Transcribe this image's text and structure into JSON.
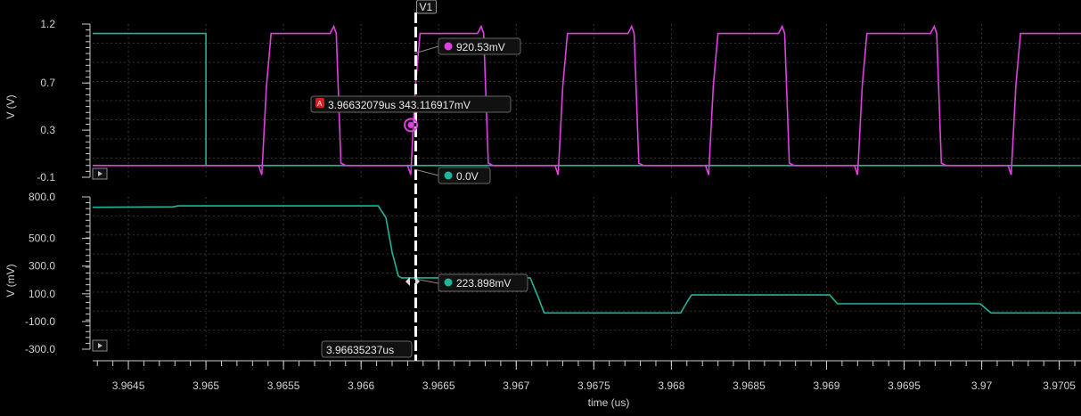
{
  "chart_data": [
    {
      "type": "line",
      "panel": "top",
      "ylabel": "V (V)",
      "yticks": [
        "1.2",
        "0.7",
        "0.3",
        "-0.1"
      ],
      "ylim": [
        -0.1,
        1.2
      ],
      "grid": true,
      "series": [
        {
          "color": "#1fb59a",
          "points": [
            [
              3.96427,
              1.12
            ],
            [
              3.965,
              1.12
            ],
            [
              3.965,
              0.0
            ],
            [
              3.97064,
              0.0
            ]
          ]
        },
        {
          "color": "#e040e0",
          "shape": "pulse",
          "high": 1.12,
          "low": 0.0,
          "overshoot": 1.18,
          "undershoot": -0.08,
          "pulses": [
            {
              "rise": 3.96537,
              "fall": 3.96584
            },
            {
              "rise": 3.96633,
              "fall": 3.96679
            },
            {
              "rise": 3.96728,
              "fall": 3.96776
            },
            {
              "rise": 3.96825,
              "fall": 3.96873
            },
            {
              "rise": 3.96921,
              "fall": 3.96971
            },
            {
              "rise": 3.9702,
              "fall": 3.9708
            }
          ]
        }
      ]
    },
    {
      "type": "line",
      "panel": "bottom",
      "ylabel": "V (mV)",
      "yticks": [
        "800.0",
        "500.0",
        "300.0",
        "100.0",
        "-100.0",
        "-300.0"
      ],
      "ylim": [
        -300,
        800
      ],
      "grid": true,
      "series": [
        {
          "color": "#1fb59a",
          "points": [
            [
              3.96427,
              725
            ],
            [
              3.96479,
              728
            ],
            [
              3.96482,
              735
            ],
            [
              3.96611,
              735
            ],
            [
              3.96616,
              650
            ],
            [
              3.9662,
              400
            ],
            [
              3.96624,
              230
            ],
            [
              3.96626,
              215
            ],
            [
              3.96709,
              215
            ],
            [
              3.96714,
              80
            ],
            [
              3.96718,
              -38
            ],
            [
              3.96806,
              -38
            ],
            [
              3.9681,
              40
            ],
            [
              3.96813,
              92
            ],
            [
              3.96902,
              92
            ],
            [
              3.96907,
              28
            ],
            [
              3.96999,
              28
            ],
            [
              3.97006,
              -38
            ],
            [
              3.97064,
              -38
            ]
          ]
        }
      ]
    }
  ],
  "xaxis": {
    "label": "time (us)",
    "ticks": [
      "3.9645",
      "3.965",
      "3.9655",
      "3.966",
      "3.9665",
      "3.967",
      "3.9675",
      "3.968",
      "3.9685",
      "3.969",
      "3.9695",
      "3.97",
      "3.9705"
    ],
    "xlim": [
      3.96427,
      3.97064
    ]
  },
  "cursor": {
    "name": "V1",
    "time": 3.96635237,
    "time_label": "3.96635237us",
    "top_pink_value": "920.53mV",
    "top_green_value": "0.0V",
    "bottom_value": "223.898mV"
  },
  "marker_a": {
    "badge": "A",
    "label": "3.96632079us 343.116917mV",
    "time": 3.96632079,
    "value": 0.343
  },
  "colors": {
    "green": "#1fb59a",
    "pink": "#e040e0",
    "background": "#000000",
    "marker": "#d02020"
  }
}
